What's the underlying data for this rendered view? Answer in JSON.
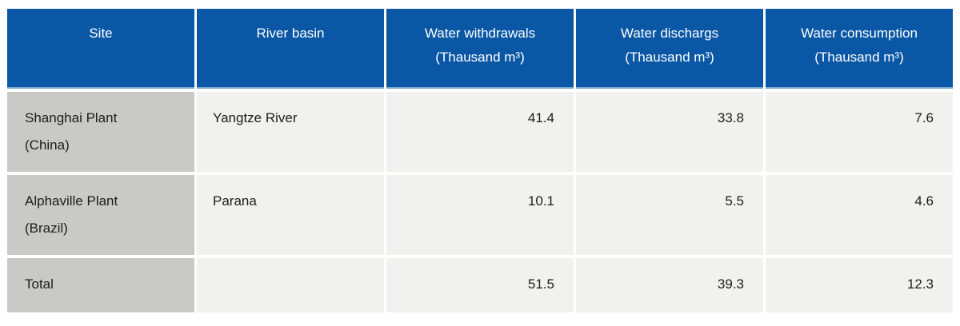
{
  "table": {
    "columns": [
      {
        "label": "Site",
        "sub": ""
      },
      {
        "label": "River basin",
        "sub": ""
      },
      {
        "label": "Water withdrawals",
        "sub": "(Thausand m³)"
      },
      {
        "label": "Water dischargs",
        "sub": "(Thausand m³)"
      },
      {
        "label": "Water consumption",
        "sub": "(Thausand m³)"
      }
    ],
    "rows": [
      {
        "site_line1": "Shanghai Plant",
        "site_line2": "(China)",
        "river_basin": "Yangtze River",
        "withdrawals": "41.4",
        "discharges": "33.8",
        "consumption": "7.6"
      },
      {
        "site_line1": "Alphaville Plant",
        "site_line2": "(Brazil)",
        "river_basin": "Parana",
        "withdrawals": "10.1",
        "discharges": "5.5",
        "consumption": "4.6"
      }
    ],
    "total": {
      "label": "Total",
      "river_basin": "",
      "withdrawals": "51.5",
      "discharges": "39.3",
      "consumption": "12.3"
    }
  },
  "colors": {
    "header_bg": "#0a57a5",
    "header_text": "#ffffff",
    "header_bottom_edge": "#7ba4d0",
    "site_column_bg": "#c9c9c8",
    "cell_bg": "#f1f1f0",
    "body_text": "#1c1c1c",
    "page_bg": "#ffffff"
  }
}
